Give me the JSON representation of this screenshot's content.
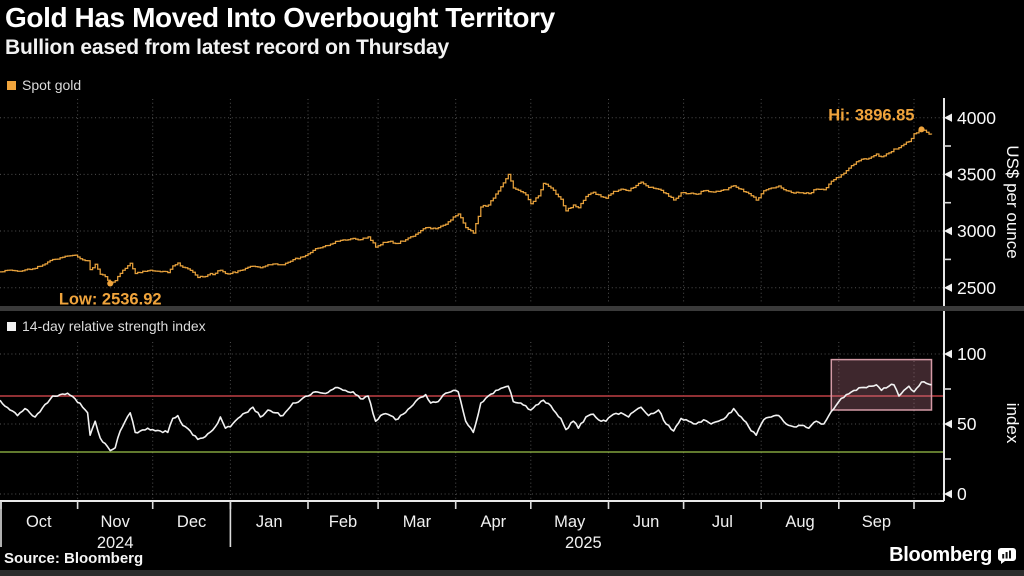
{
  "header": {
    "title": "Gold Has Moved Into Overbought Territory",
    "subtitle": "Bullion eased from latest record on Thursday"
  },
  "footer": {
    "source": "Source: Bloomberg",
    "brand": "Bloomberg"
  },
  "colors": {
    "background": "#000000",
    "gold_line": "#e8a23c",
    "gold_swatch": "#f0a43c",
    "annotation_orange": "#f0a43c",
    "rsi_line": "#f2f2f2",
    "rsi_swatch": "#f2f2f2",
    "overbought_red": "#bf4045",
    "oversold_green": "#81a33e",
    "box_fill": "rgba(204,128,148,0.30)",
    "box_stroke": "#d49aa6",
    "grid": "#4f4f4f",
    "axis": "#e8e8e8",
    "text": "#f5f5f5"
  },
  "chart_data": {
    "type": "line",
    "x_day_range": [
      0,
      377
    ],
    "x_epoch": "days since 2024-10-01",
    "samples_format": [
      "day",
      "spot_gold_usd_per_ounce",
      "rsi_14_day"
    ],
    "samples": [
      [
        0,
        2639,
        67
      ],
      [
        4,
        2655,
        60
      ],
      [
        7,
        2645,
        56
      ],
      [
        10,
        2657,
        61
      ],
      [
        14,
        2670,
        55
      ],
      [
        18,
        2710,
        64
      ],
      [
        21,
        2749,
        70
      ],
      [
        24,
        2765,
        71
      ],
      [
        27,
        2780,
        72
      ],
      [
        30,
        2788,
        68
      ],
      [
        33,
        2745,
        62
      ],
      [
        35,
        2737,
        58
      ],
      [
        36,
        2660,
        42
      ],
      [
        38,
        2707,
        52
      ],
      [
        40,
        2618,
        40
      ],
      [
        42,
        2598,
        36
      ],
      [
        44,
        2536.92,
        31
      ],
      [
        46,
        2563,
        33
      ],
      [
        48,
        2626,
        45
      ],
      [
        50,
        2670,
        52
      ],
      [
        52,
        2716,
        58
      ],
      [
        54,
        2625,
        44
      ],
      [
        56,
        2633,
        45
      ],
      [
        59,
        2650,
        47
      ],
      [
        61,
        2648,
        46
      ],
      [
        64,
        2640,
        45
      ],
      [
        67,
        2633,
        44
      ],
      [
        69,
        2692,
        54
      ],
      [
        71,
        2718,
        56
      ],
      [
        73,
        2680,
        49
      ],
      [
        76,
        2653,
        45
      ],
      [
        79,
        2590,
        39
      ],
      [
        81,
        2595,
        40
      ],
      [
        83,
        2613,
        43
      ],
      [
        86,
        2628,
        48
      ],
      [
        88,
        2654,
        55
      ],
      [
        90,
        2625,
        47
      ],
      [
        92,
        2625,
        48
      ],
      [
        95,
        2648,
        54
      ],
      [
        98,
        2670,
        58
      ],
      [
        101,
        2690,
        62
      ],
      [
        104,
        2676,
        55
      ],
      [
        107,
        2703,
        60
      ],
      [
        110,
        2710,
        58
      ],
      [
        113,
        2702,
        56
      ],
      [
        117,
        2748,
        65
      ],
      [
        120,
        2770,
        67
      ],
      [
        123,
        2798,
        70
      ],
      [
        126,
        2845,
        73
      ],
      [
        129,
        2861,
        72
      ],
      [
        132,
        2885,
        74
      ],
      [
        135,
        2910,
        76
      ],
      [
        138,
        2920,
        74
      ],
      [
        141,
        2935,
        73
      ],
      [
        144,
        2924,
        68
      ],
      [
        147,
        2948,
        70
      ],
      [
        150,
        2858,
        52
      ],
      [
        153,
        2900,
        57
      ],
      [
        156,
        2910,
        56
      ],
      [
        158,
        2890,
        53
      ],
      [
        161,
        2910,
        57
      ],
      [
        164,
        2950,
        62
      ],
      [
        167,
        2984,
        68
      ],
      [
        170,
        3030,
        71
      ],
      [
        172,
        3020,
        65
      ],
      [
        175,
        3030,
        66
      ],
      [
        178,
        3060,
        72
      ],
      [
        181,
        3124,
        74
      ],
      [
        183,
        3150,
        73
      ],
      [
        186,
        3030,
        52
      ],
      [
        189,
        2982,
        44
      ],
      [
        192,
        3212,
        65
      ],
      [
        195,
        3230,
        70
      ],
      [
        198,
        3327,
        74
      ],
      [
        201,
        3425,
        76
      ],
      [
        203,
        3500,
        77
      ],
      [
        205,
        3380,
        66
      ],
      [
        208,
        3348,
        65
      ],
      [
        210,
        3319,
        63
      ],
      [
        212,
        3240,
        60
      ],
      [
        215,
        3310,
        64
      ],
      [
        217,
        3420,
        67
      ],
      [
        220,
        3380,
        63
      ],
      [
        222,
        3325,
        58
      ],
      [
        224,
        3280,
        54
      ],
      [
        226,
        3178,
        46
      ],
      [
        229,
        3230,
        52
      ],
      [
        231,
        3205,
        47
      ],
      [
        234,
        3305,
        55
      ],
      [
        237,
        3342,
        57
      ],
      [
        239,
        3320,
        53
      ],
      [
        242,
        3289,
        52
      ],
      [
        245,
        3350,
        57
      ],
      [
        248,
        3370,
        58
      ],
      [
        251,
        3355,
        55
      ],
      [
        254,
        3402,
        60
      ],
      [
        256,
        3432,
        62
      ],
      [
        259,
        3385,
        56
      ],
      [
        263,
        3368,
        60
      ],
      [
        266,
        3330,
        50
      ],
      [
        269,
        3274,
        45
      ],
      [
        272,
        3337,
        54
      ],
      [
        275,
        3330,
        52
      ],
      [
        278,
        3325,
        50
      ],
      [
        281,
        3355,
        53
      ],
      [
        284,
        3345,
        50
      ],
      [
        287,
        3350,
        52
      ],
      [
        290,
        3365,
        55
      ],
      [
        293,
        3400,
        61
      ],
      [
        296,
        3368,
        55
      ],
      [
        299,
        3330,
        48
      ],
      [
        302,
        3273,
        42
      ],
      [
        305,
        3355,
        53
      ],
      [
        308,
        3380,
        55
      ],
      [
        311,
        3397,
        56
      ],
      [
        314,
        3355,
        50
      ],
      [
        317,
        3335,
        48
      ],
      [
        320,
        3338,
        49
      ],
      [
        323,
        3330,
        47
      ],
      [
        326,
        3370,
        52
      ],
      [
        329,
        3365,
        50
      ],
      [
        332,
        3440,
        59
      ],
      [
        335,
        3476,
        66
      ],
      [
        338,
        3533,
        71
      ],
      [
        341,
        3590,
        74
      ],
      [
        344,
        3634,
        76
      ],
      [
        347,
        3643,
        77
      ],
      [
        350,
        3680,
        78
      ],
      [
        352,
        3655,
        74
      ],
      [
        355,
        3689,
        77
      ],
      [
        357,
        3724,
        78
      ],
      [
        359,
        3736,
        70
      ],
      [
        361,
        3765,
        74
      ],
      [
        363,
        3790,
        77
      ],
      [
        365,
        3858,
        73
      ],
      [
        368,
        3896.85,
        80
      ],
      [
        370,
        3871,
        79
      ],
      [
        372,
        3852,
        78
      ]
    ],
    "panels": [
      {
        "name": "price",
        "legend": "Spot gold",
        "ylabel": "US$ per ounce",
        "ylim": [
          2500,
          4000
        ],
        "yticks": [
          2500,
          3000,
          3500,
          4000
        ],
        "grid": true,
        "annotations": [
          {
            "id": "high",
            "label": "Hi: 3896.85",
            "day": 368,
            "value": 3896.85
          },
          {
            "id": "low",
            "label": "Low: 2536.92",
            "day": 44,
            "value": 2536.92
          }
        ]
      },
      {
        "name": "rsi",
        "legend": "14-day relative strength index",
        "ylabel": "index",
        "ylim": [
          0,
          100
        ],
        "yticks": [
          0,
          50,
          100
        ],
        "grid": true,
        "ref_lines": [
          {
            "name": "overbought-line",
            "value": 70,
            "color": "#bf4045"
          },
          {
            "name": "oversold-line",
            "value": 30,
            "color": "#81a33e"
          }
        ],
        "highlight_box": {
          "day_start": 332,
          "day_end": 372,
          "value_low": 60,
          "value_high": 96
        }
      }
    ],
    "x_axis": {
      "month_boundaries_day": [
        0,
        31,
        61,
        92,
        123,
        151,
        182,
        212,
        243,
        273,
        304,
        335,
        365
      ],
      "month_labels": [
        "Oct",
        "Nov",
        "Dec",
        "Jan",
        "Feb",
        "Mar",
        "Apr",
        "May",
        "Jun",
        "Jul",
        "Aug",
        "Sep"
      ],
      "year_labels": [
        {
          "text": "2024",
          "day": 46
        },
        {
          "text": "2025",
          "day": 233
        }
      ],
      "year_separator_days": [
        0,
        92
      ]
    },
    "legend_position": "top-left of each panel",
    "grid_style": "dotted"
  }
}
